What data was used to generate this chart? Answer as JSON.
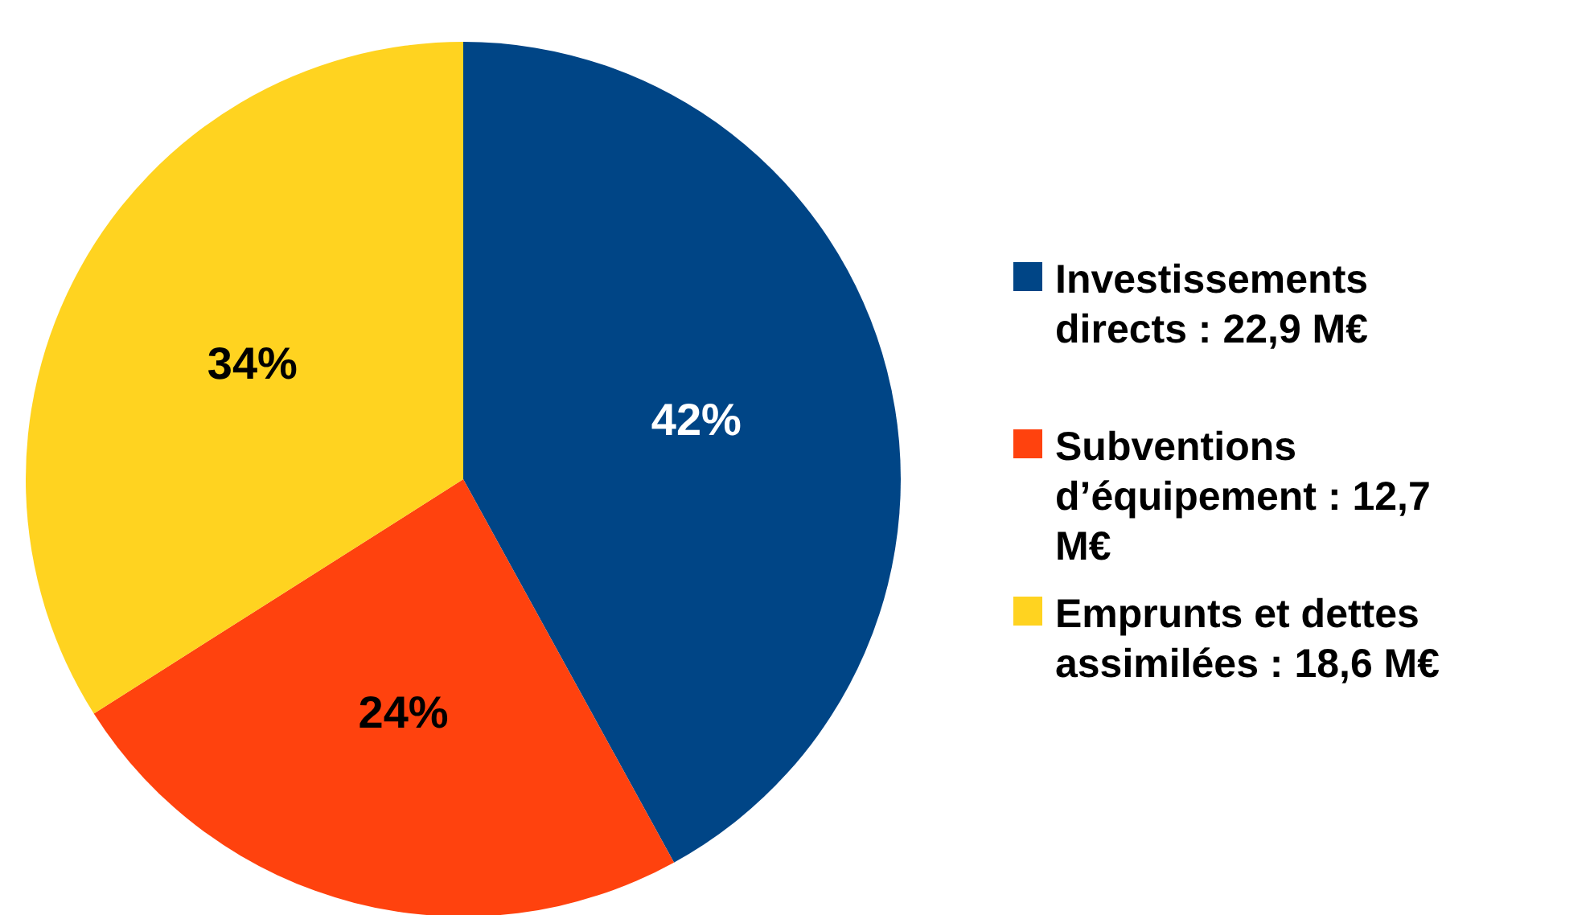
{
  "chart_data": {
    "type": "pie",
    "categories": [
      "Investissements directs : 22,9 M€",
      "Subventions d’équipement : 12,7 M€",
      "Emprunts et dettes assimilées : 18,6 M€"
    ],
    "values": [
      42,
      24,
      34
    ],
    "colors": [
      "#004586",
      "#ff420e",
      "#ffd320"
    ],
    "value_labels": [
      "42%",
      "24%",
      "34%"
    ],
    "legend": "right"
  }
}
